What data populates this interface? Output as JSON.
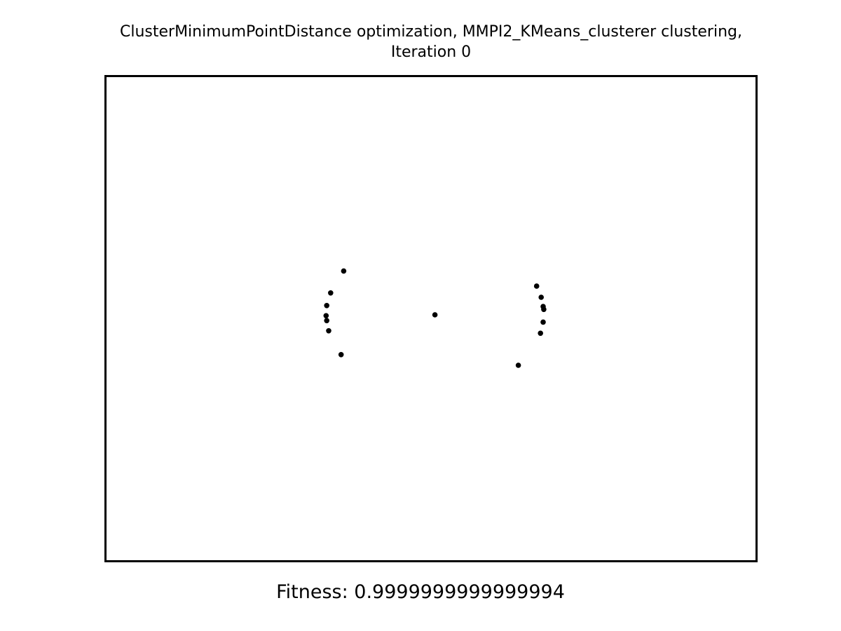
{
  "chart_data": {
    "type": "scatter",
    "title_lines": [
      "ClusterMinimumPointDistance optimization, MMPI2_KMeans_clusterer clustering,",
      "Iteration 0"
    ],
    "caption": "Fitness: 0.9999999999999994",
    "xlabel": "",
    "ylabel": "",
    "xlim": [
      0,
      1
    ],
    "ylim": [
      0,
      1
    ],
    "axes_visible": false,
    "grid": false,
    "point_color": "#000000",
    "points": [
      {
        "x": 0.366,
        "y": 0.598
      },
      {
        "x": 0.346,
        "y": 0.553
      },
      {
        "x": 0.34,
        "y": 0.527
      },
      {
        "x": 0.339,
        "y": 0.506
      },
      {
        "x": 0.34,
        "y": 0.496
      },
      {
        "x": 0.343,
        "y": 0.475
      },
      {
        "x": 0.362,
        "y": 0.426
      },
      {
        "x": 0.506,
        "y": 0.508
      },
      {
        "x": 0.662,
        "y": 0.567
      },
      {
        "x": 0.669,
        "y": 0.544
      },
      {
        "x": 0.672,
        "y": 0.525
      },
      {
        "x": 0.673,
        "y": 0.519
      },
      {
        "x": 0.672,
        "y": 0.493
      },
      {
        "x": 0.668,
        "y": 0.47
      },
      {
        "x": 0.634,
        "y": 0.404
      }
    ]
  }
}
